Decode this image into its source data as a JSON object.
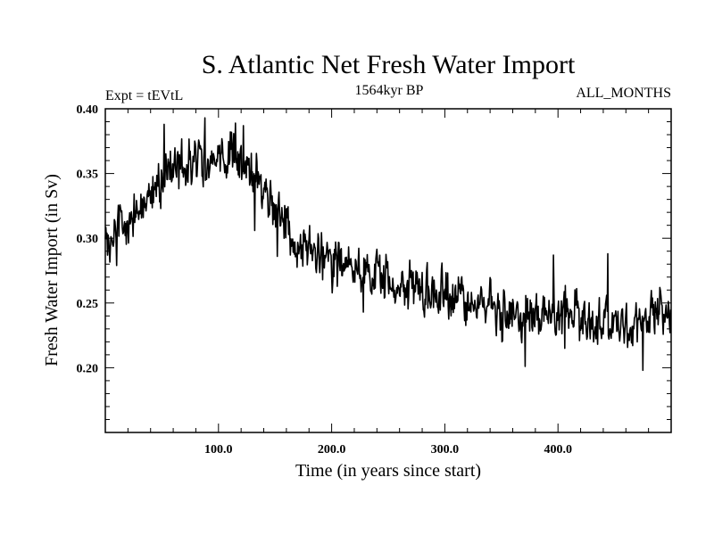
{
  "chart_data": {
    "type": "line",
    "title": "S. Atlantic Net Fresh Water Import",
    "subtitle_left": "Expt = tEVtL",
    "subtitle_center": "1564kyr BP",
    "subtitle_right": "ALL_MONTHS",
    "xlabel": "Time (in years since start)",
    "ylabel": "Fresh Water Import (in Sv)",
    "xlim": [
      0,
      500
    ],
    "ylim": [
      0.15,
      0.4
    ],
    "x_ticks": [
      100,
      200,
      300,
      400
    ],
    "x_tick_labels": [
      "100.0",
      "200.0",
      "300.0",
      "400.0"
    ],
    "y_ticks": [
      0.2,
      0.25,
      0.3,
      0.35,
      0.4
    ],
    "y_tick_labels": [
      "0.20",
      "0.25",
      "0.30",
      "0.35",
      "0.40"
    ],
    "grid": false,
    "series": [
      {
        "name": "Net Fresh Water Import",
        "x_start": 0,
        "x_step": 0.5,
        "trend_knots": [
          [
            0,
            0.3
          ],
          [
            15,
            0.305
          ],
          [
            30,
            0.322
          ],
          [
            45,
            0.34
          ],
          [
            60,
            0.355
          ],
          [
            80,
            0.357
          ],
          [
            100,
            0.36
          ],
          [
            115,
            0.362
          ],
          [
            130,
            0.35
          ],
          [
            145,
            0.332
          ],
          [
            160,
            0.305
          ],
          [
            180,
            0.292
          ],
          [
            200,
            0.283
          ],
          [
            220,
            0.275
          ],
          [
            250,
            0.266
          ],
          [
            280,
            0.258
          ],
          [
            310,
            0.254
          ],
          [
            350,
            0.246
          ],
          [
            380,
            0.241
          ],
          [
            420,
            0.238
          ],
          [
            460,
            0.233
          ],
          [
            500,
            0.24
          ]
        ],
        "noise_amplitude": 0.024,
        "noise_seed": 1564,
        "extreme_points": [
          [
            2,
            0.287
          ],
          [
            10,
            0.279
          ],
          [
            52,
            0.388
          ],
          [
            88,
            0.393
          ],
          [
            115,
            0.389
          ],
          [
            122,
            0.387
          ],
          [
            132,
            0.306
          ],
          [
            152,
            0.286
          ],
          [
            178,
            0.298
          ],
          [
            186,
            0.277
          ],
          [
            192,
            0.268
          ],
          [
            228,
            0.243
          ],
          [
            285,
            0.246
          ],
          [
            371,
            0.201
          ],
          [
            396,
            0.287
          ],
          [
            406,
            0.215
          ],
          [
            444,
            0.288
          ],
          [
            470,
            0.22
          ],
          [
            475,
            0.198
          ],
          [
            490,
            0.262
          ]
        ]
      }
    ]
  }
}
